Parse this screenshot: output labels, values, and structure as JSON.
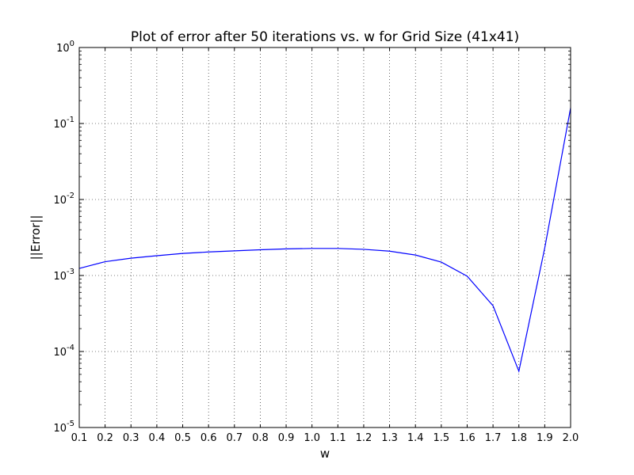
{
  "chart_data": {
    "type": "line",
    "title": "Plot of error after 50 iterations vs. w for Grid Size (41x41)",
    "xlabel": "w",
    "ylabel": "||Error||",
    "y_scale": "log",
    "xlim": [
      0.1,
      2.0
    ],
    "ylim": [
      1e-05,
      1
    ],
    "grid": true,
    "x_ticks": [
      "0.1",
      "0.2",
      "0.3",
      "0.4",
      "0.5",
      "0.6",
      "0.7",
      "0.8",
      "0.9",
      "1.0",
      "1.1",
      "1.2",
      "1.3",
      "1.4",
      "1.5",
      "1.6",
      "1.7",
      "1.8",
      "1.9",
      "2.0"
    ],
    "y_ticks": [
      {
        "base": "10",
        "exp": "0",
        "value": 1
      },
      {
        "base": "10",
        "exp": "-1",
        "value": 0.1
      },
      {
        "base": "10",
        "exp": "-2",
        "value": 0.01
      },
      {
        "base": "10",
        "exp": "-3",
        "value": 0.001
      },
      {
        "base": "10",
        "exp": "-4",
        "value": 0.0001
      },
      {
        "base": "10",
        "exp": "-5",
        "value": 1e-05
      }
    ],
    "series": [
      {
        "color": "#0000ff",
        "x": [
          0.1,
          0.2,
          0.3,
          0.4,
          0.5,
          0.6,
          0.7,
          0.8,
          0.9,
          1.0,
          1.1,
          1.2,
          1.3,
          1.4,
          1.5,
          1.6,
          1.7,
          1.8,
          1.9,
          2.0
        ],
        "y": [
          0.00124,
          0.00152,
          0.00169,
          0.00182,
          0.00195,
          0.00204,
          0.00211,
          0.00218,
          0.00224,
          0.00227,
          0.00227,
          0.00221,
          0.00209,
          0.00186,
          0.0015,
          0.00098,
          0.0004,
          5.5e-05,
          0.0023,
          0.16
        ]
      }
    ]
  }
}
